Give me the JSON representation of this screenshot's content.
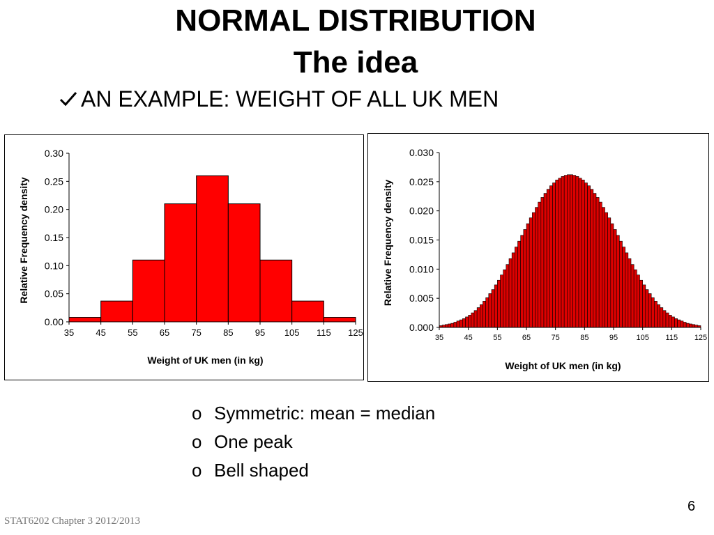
{
  "slide": {
    "title_line1": "NORMAL DISTRIBUTION",
    "title_line2": "The idea",
    "subtitle": "AN EXAMPLE: WEIGHT OF ALL UK MEN",
    "subtitle_icon": "checkmark-icon",
    "bullets": [
      "Symmetric: mean = median",
      "One peak",
      "Bell shaped"
    ],
    "bullet_marker": "o",
    "footer": "STAT6202  Chapter 3 2012/2013",
    "page_number": "6"
  },
  "colors": {
    "bar_fill": "#ff0000",
    "bar_fill_fine": "#dd0000",
    "bar_stroke": "#000000"
  },
  "chart_data": [
    {
      "type": "bar",
      "title": "",
      "xlabel": "Weight of UK men (in kg)",
      "ylabel": "Relative Frequency density",
      "bin_edges": [
        35,
        45,
        55,
        65,
        75,
        85,
        95,
        105,
        115,
        125
      ],
      "x_tick_labels": [
        "35",
        "45",
        "55",
        "65",
        "75",
        "85",
        "95",
        "105",
        "115",
        "125"
      ],
      "values": [
        0.008,
        0.037,
        0.11,
        0.21,
        0.26,
        0.21,
        0.11,
        0.037,
        0.008
      ],
      "ylim": [
        0,
        0.3
      ],
      "y_ticks": [
        "0.00",
        "0.05",
        "0.10",
        "0.15",
        "0.20",
        "0.25",
        "0.30"
      ],
      "grid": false,
      "legend": "none"
    },
    {
      "type": "bar",
      "title": "",
      "xlabel": "Weight of UK men (in kg)",
      "ylabel": "Relative Frequency density",
      "distribution": "normal",
      "mean": 80,
      "std": 15,
      "bin_width": 1,
      "x_range": [
        35,
        125
      ],
      "x_tick_labels": [
        "35",
        "45",
        "55",
        "65",
        "75",
        "85",
        "95",
        "105",
        "115",
        "125"
      ],
      "values": [
        0.0003,
        0.0004,
        0.0005,
        0.0006,
        0.0007,
        0.0009,
        0.0011,
        0.0013,
        0.0015,
        0.0018,
        0.0021,
        0.0025,
        0.0029,
        0.0034,
        0.0039,
        0.0045,
        0.0051,
        0.0058,
        0.0065,
        0.0073,
        0.0081,
        0.009,
        0.0099,
        0.0108,
        0.0118,
        0.0128,
        0.0138,
        0.0148,
        0.0158,
        0.0168,
        0.0178,
        0.0188,
        0.0197,
        0.0206,
        0.0215,
        0.0223,
        0.023,
        0.0237,
        0.0243,
        0.0248,
        0.0253,
        0.0256,
        0.0259,
        0.0261,
        0.0262,
        0.0262,
        0.0261,
        0.0259,
        0.0256,
        0.0253,
        0.0248,
        0.0243,
        0.0237,
        0.023,
        0.0223,
        0.0215,
        0.0206,
        0.0197,
        0.0188,
        0.0178,
        0.0168,
        0.0158,
        0.0148,
        0.0138,
        0.0128,
        0.0118,
        0.0108,
        0.0099,
        0.009,
        0.0081,
        0.0073,
        0.0065,
        0.0058,
        0.0051,
        0.0045,
        0.0039,
        0.0034,
        0.0029,
        0.0025,
        0.0021,
        0.0018,
        0.0015,
        0.0013,
        0.0011,
        0.0009,
        0.0007,
        0.0006,
        0.0005,
        0.0004,
        0.0003
      ],
      "ylim": [
        0,
        0.03
      ],
      "y_ticks": [
        "0.000",
        "0.005",
        "0.010",
        "0.015",
        "0.020",
        "0.025",
        "0.030"
      ],
      "grid": false,
      "legend": "none"
    }
  ]
}
